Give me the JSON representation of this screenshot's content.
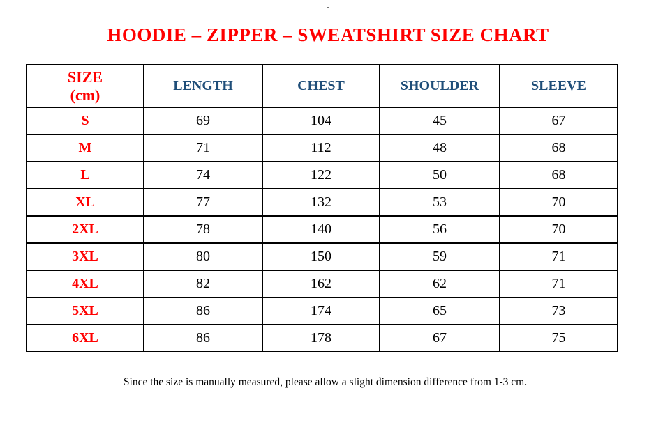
{
  "page": {
    "top_mark": ".",
    "title": "HOODIE – ZIPPER – SWEATSHIRT SIZE CHART",
    "footnote": "Since the size is manually measured, please allow a slight dimension difference from 1-3 cm."
  },
  "colors": {
    "title_red": "#FF0000",
    "size_label_red": "#FF0000",
    "header_blue": "#1F4E79",
    "body_text": "#000000",
    "border": "#000000",
    "background": "#FFFFFF"
  },
  "table": {
    "size_header": {
      "line1": "SIZE",
      "line2": "(cm)"
    },
    "headers": [
      "LENGTH",
      "CHEST",
      "SHOULDER",
      "SLEEVE"
    ],
    "rows": [
      [
        "S",
        "69",
        "104",
        "45",
        "67"
      ],
      [
        "M",
        "71",
        "112",
        "48",
        "68"
      ],
      [
        "L",
        "74",
        "122",
        "50",
        "68"
      ],
      [
        "XL",
        "77",
        "132",
        "53",
        "70"
      ],
      [
        "2XL",
        "78",
        "140",
        "56",
        "70"
      ],
      [
        "3XL",
        "80",
        "150",
        "59",
        "71"
      ],
      [
        "4XL",
        "82",
        "162",
        "62",
        "71"
      ],
      [
        "5XL",
        "86",
        "174",
        "65",
        "73"
      ],
      [
        "6XL",
        "86",
        "178",
        "67",
        "75"
      ]
    ]
  }
}
